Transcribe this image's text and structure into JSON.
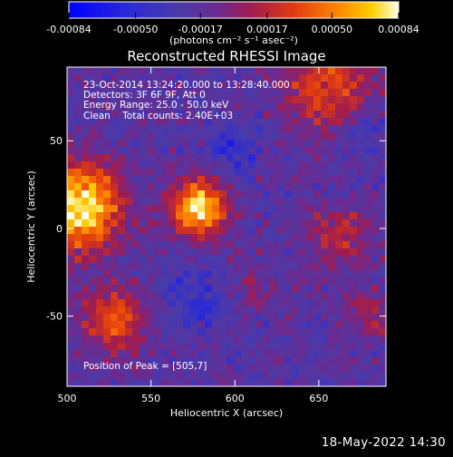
{
  "chart_data": {
    "type": "heatmap",
    "title": "Reconstructed RHESSI Image",
    "xlabel": "Heliocentric X (arcsec)",
    "ylabel": "Heliocentric Y (arcsec)",
    "xlim": [
      500,
      690
    ],
    "ylim": [
      -90,
      92
    ],
    "x_ticks": [
      "500",
      "550",
      "600",
      "650"
    ],
    "x_tick_values": [
      500,
      550,
      600,
      650
    ],
    "y_ticks": [
      "50",
      "0",
      "-50"
    ],
    "y_tick_values": [
      50,
      0,
      -50
    ],
    "colorbar": {
      "min": -0.00084,
      "max": 0.00084,
      "tick_labels": [
        "-0.00084",
        "-0.00050",
        "-0.00017",
        "0.00017",
        "0.00050",
        "0.00084"
      ],
      "tick_values": [
        -0.00084,
        -0.0005,
        -0.00017,
        0.00017,
        0.0005,
        0.00084
      ],
      "unit_label": "(photons cm⁻² s⁻¹ asec⁻²)"
    },
    "annotations": {
      "time_range": "23-Oct-2014 13:24:20.000 to 13:28:40.000",
      "detectors": "Detectors: 3F 6F 9F, Att 0",
      "energy_range": "Energy Range: 25.0 - 50.0 keV",
      "method_counts": "Clean    Total counts: 2.40E+03",
      "peak": "Position of Peak = [505,7]"
    },
    "peak_position": [
      505,
      7
    ],
    "hot_regions": [
      {
        "x": 508,
        "y": 12,
        "sigma": 17,
        "amp": 1.0
      },
      {
        "x": 578,
        "y": 12,
        "sigma": 11,
        "amp": 0.95
      },
      {
        "x": 528,
        "y": -52,
        "sigma": 13,
        "amp": 0.55
      },
      {
        "x": 655,
        "y": 82,
        "sigma": 18,
        "amp": 0.5
      },
      {
        "x": 662,
        "y": -5,
        "sigma": 13,
        "amp": 0.35
      },
      {
        "x": 680,
        "y": -50,
        "sigma": 9,
        "amp": 0.3
      },
      {
        "x": 610,
        "y": -35,
        "sigma": 9,
        "amp": 0.18
      }
    ],
    "cold_regions": [
      {
        "x": 600,
        "y": 45,
        "sigma": 10,
        "amp": 0.45
      },
      {
        "x": 575,
        "y": -40,
        "sigma": 14,
        "amp": 0.35
      },
      {
        "x": 675,
        "y": 55,
        "sigma": 9,
        "amp": 0.35
      }
    ]
  },
  "footer": {
    "timestamp": "18-May-2022 14:30"
  },
  "colors": {
    "background": "#000000",
    "text": "#ffffff",
    "colormap": [
      "#0000ff",
      "#2020d0",
      "#3a2cb0",
      "#4a3aa0",
      "#7a1a80",
      "#b02040",
      "#e04010",
      "#ff7a00",
      "#ffc000",
      "#ffffc0"
    ]
  }
}
